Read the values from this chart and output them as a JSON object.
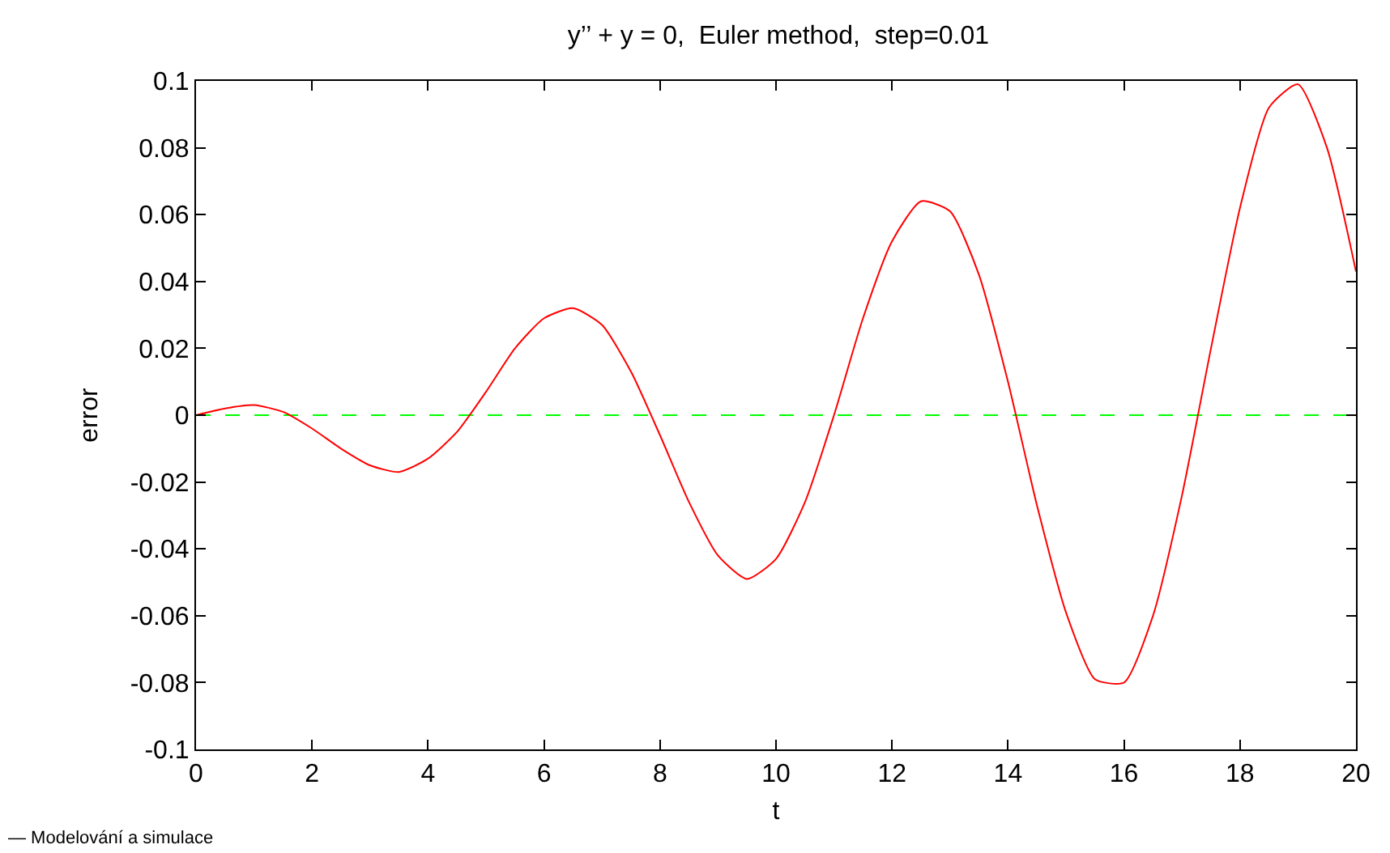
{
  "chart_data": {
    "type": "line",
    "title": "y’’ + y = 0,  Euler method,  step=0.01",
    "xlabel": "t",
    "ylabel": "error",
    "x": [
      0,
      0.5,
      1,
      1.5,
      2,
      2.5,
      3,
      3.5,
      4,
      4.5,
      5,
      5.5,
      6,
      6.5,
      7,
      7.5,
      8,
      8.5,
      9,
      9.5,
      10,
      10.5,
      11,
      11.5,
      12,
      12.5,
      13,
      13.5,
      14,
      14.5,
      15,
      15.5,
      16,
      16.5,
      17,
      17.5,
      18,
      18.5,
      19,
      19.5,
      20
    ],
    "series": [
      {
        "color": "#ff0000",
        "values": [
          0,
          0.002,
          0.003,
          0.001,
          -0.004,
          -0.01,
          -0.015,
          -0.017,
          -0.013,
          -0.005,
          0.007,
          0.02,
          0.029,
          0.032,
          0.027,
          0.013,
          -0.006,
          -0.026,
          -0.042,
          -0.049,
          -0.043,
          -0.026,
          0.0,
          0.029,
          0.052,
          0.064,
          0.061,
          0.042,
          0.01,
          -0.027,
          -0.059,
          -0.079,
          -0.08,
          -0.06,
          -0.024,
          0.02,
          0.062,
          0.092,
          0.099,
          0.08,
          0.043
        ]
      }
    ],
    "xlim": [
      0,
      20
    ],
    "xticks": [
      0,
      2,
      4,
      6,
      8,
      10,
      12,
      14,
      16,
      18,
      20
    ],
    "ylim": [
      -0.1,
      0.1
    ],
    "yticks": [
      -0.1,
      -0.08,
      -0.06,
      -0.04,
      -0.02,
      0,
      0.02,
      0.04,
      0.06,
      0.08,
      0.1
    ],
    "ref_lines": [
      {
        "axis": "y",
        "value": 0,
        "color": "#00ff00",
        "line_style": "dashed"
      }
    ],
    "annotations": [
      "— Modelování a simulace"
    ],
    "grid": false,
    "legend": false,
    "marker": "none",
    "line_style": "solid"
  }
}
